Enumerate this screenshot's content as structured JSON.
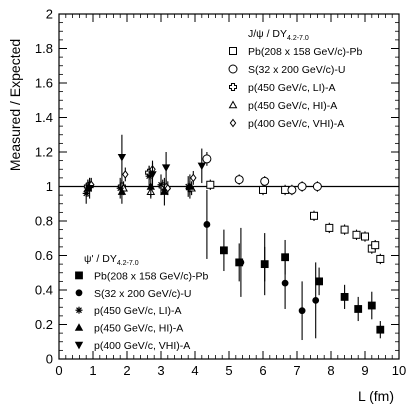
{
  "chart_data": {
    "type": "scatter",
    "xlabel": "L (fm)",
    "ylabel": "Measured / Expected",
    "xlim": [
      0,
      10
    ],
    "ylim": [
      0,
      2
    ],
    "x_ticks": [
      "0",
      "1",
      "2",
      "3",
      "4",
      "5",
      "6",
      "7",
      "8",
      "9",
      "10"
    ],
    "y_ticks": [
      "0",
      "0.2",
      "0.4",
      "0.6",
      "0.8",
      "1",
      "1.2",
      "1.4",
      "1.6",
      "1.8",
      "2"
    ],
    "reference_line": 1,
    "grid": false,
    "legends": [
      {
        "position": "top-right",
        "title_main": "J/ψ / DY",
        "title_sub": "4.2-7.0",
        "entries": [
          {
            "marker": "open-square",
            "label": "Pb(208 x 158 GeV/c)-Pb"
          },
          {
            "marker": "open-circle",
            "label": "S(32 x 200 GeV/c)-U"
          },
          {
            "marker": "open-cross",
            "label": "p(450 GeV/c, LI)-A"
          },
          {
            "marker": "open-triangle-up",
            "label": "p(450 GeV/c, HI)-A"
          },
          {
            "marker": "open-diamond",
            "label": "p(400 GeV/c, VHI)-A"
          }
        ]
      },
      {
        "position": "bottom-left",
        "title_main": "ψ' / DY",
        "title_sub": "4.2-7.0",
        "entries": [
          {
            "marker": "filled-square",
            "label": "Pb(208 x 158 GeV/c)-Pb"
          },
          {
            "marker": "filled-circle",
            "label": "S(32 x 200 GeV/c)-U"
          },
          {
            "marker": "asterisk",
            "label": "p(450 GeV/c, LI)-A"
          },
          {
            "marker": "filled-triangle-up",
            "label": "p(450 GeV/c, HI)-A"
          },
          {
            "marker": "filled-triangle-down",
            "label": "p(400 GeV/c, VHI)-A"
          }
        ]
      }
    ],
    "series": [
      {
        "marker": "open-square",
        "points": [
          {
            "x": 4.45,
            "y": 1.01,
            "err": 0.03
          },
          {
            "x": 6.0,
            "y": 0.98,
            "err": 0.03
          },
          {
            "x": 6.65,
            "y": 0.98,
            "err": 0.03
          },
          {
            "x": 7.5,
            "y": 0.83,
            "err": 0.03
          },
          {
            "x": 7.95,
            "y": 0.76,
            "err": 0.03
          },
          {
            "x": 8.4,
            "y": 0.75,
            "err": 0.03
          },
          {
            "x": 8.75,
            "y": 0.72,
            "err": 0.03
          },
          {
            "x": 9.0,
            "y": 0.71,
            "err": 0.03
          },
          {
            "x": 9.2,
            "y": 0.64,
            "err": 0.03
          },
          {
            "x": 9.3,
            "y": 0.66,
            "err": 0.03
          },
          {
            "x": 9.45,
            "y": 0.58,
            "err": 0.03
          }
        ]
      },
      {
        "marker": "open-circle",
        "points": [
          {
            "x": 4.35,
            "y": 1.16,
            "err": 0.04
          },
          {
            "x": 5.3,
            "y": 1.04,
            "err": 0.03
          },
          {
            "x": 6.05,
            "y": 1.03,
            "err": 0.03
          },
          {
            "x": 6.85,
            "y": 0.98,
            "err": 0.03
          },
          {
            "x": 7.15,
            "y": 1.0,
            "err": 0.03
          },
          {
            "x": 7.6,
            "y": 1.0,
            "err": 0.03
          }
        ]
      },
      {
        "marker": "open-cross",
        "points": [
          {
            "x": 0.85,
            "y": 1.0,
            "err": 0.04
          },
          {
            "x": 1.85,
            "y": 1.0,
            "err": 0.04
          },
          {
            "x": 2.65,
            "y": 1.08,
            "err": 0.04
          },
          {
            "x": 3.05,
            "y": 1.0,
            "err": 0.04
          },
          {
            "x": 3.85,
            "y": 0.99,
            "err": 0.04
          }
        ]
      },
      {
        "marker": "open-triangle-up",
        "points": [
          {
            "x": 0.9,
            "y": 1.01,
            "err": 0.04
          },
          {
            "x": 1.9,
            "y": 0.99,
            "err": 0.04
          },
          {
            "x": 2.7,
            "y": 0.97,
            "err": 0.04
          },
          {
            "x": 3.15,
            "y": 1.0,
            "err": 0.04
          },
          {
            "x": 3.9,
            "y": 0.99,
            "err": 0.04
          }
        ]
      },
      {
        "marker": "open-diamond",
        "points": [
          {
            "x": 0.95,
            "y": 1.01,
            "err": 0.04
          },
          {
            "x": 1.95,
            "y": 1.07,
            "err": 0.04
          },
          {
            "x": 2.75,
            "y": 1.1,
            "err": 0.04
          },
          {
            "x": 3.2,
            "y": 0.99,
            "err": 0.04
          },
          {
            "x": 3.95,
            "y": 1.05,
            "err": 0.04
          }
        ]
      },
      {
        "marker": "filled-square",
        "points": [
          {
            "x": 4.85,
            "y": 0.63,
            "err": 0.12
          },
          {
            "x": 5.3,
            "y": 0.56,
            "err": 0.11
          },
          {
            "x": 6.05,
            "y": 0.55,
            "err": 0.1
          },
          {
            "x": 6.65,
            "y": 0.59,
            "err": 0.1
          },
          {
            "x": 7.65,
            "y": 0.45,
            "err": 0.08
          },
          {
            "x": 8.4,
            "y": 0.36,
            "err": 0.07
          },
          {
            "x": 8.8,
            "y": 0.29,
            "err": 0.07
          },
          {
            "x": 9.2,
            "y": 0.31,
            "err": 0.08
          },
          {
            "x": 9.45,
            "y": 0.17,
            "err": 0.05
          }
        ]
      },
      {
        "marker": "filled-circle",
        "points": [
          {
            "x": 4.35,
            "y": 0.78,
            "err": 0.2
          },
          {
            "x": 5.35,
            "y": 0.56,
            "err": 0.2
          },
          {
            "x": 6.05,
            "y": 0.55,
            "err": 0.18
          },
          {
            "x": 6.65,
            "y": 0.44,
            "err": 0.15
          },
          {
            "x": 7.15,
            "y": 0.28,
            "err": 0.17
          },
          {
            "x": 7.55,
            "y": 0.34,
            "err": 0.22
          }
        ]
      },
      {
        "marker": "asterisk",
        "points": [
          {
            "x": 0.8,
            "y": 0.96,
            "err": 0.06
          },
          {
            "x": 1.8,
            "y": 0.99,
            "err": 0.06
          },
          {
            "x": 2.65,
            "y": 1.06,
            "err": 0.06
          },
          {
            "x": 3.0,
            "y": 1.01,
            "err": 0.06
          },
          {
            "x": 3.8,
            "y": 1.0,
            "err": 0.06
          }
        ]
      },
      {
        "marker": "filled-triangle-up",
        "points": [
          {
            "x": 0.85,
            "y": 0.99,
            "err": 0.05
          },
          {
            "x": 1.85,
            "y": 0.97,
            "err": 0.07
          },
          {
            "x": 2.7,
            "y": 1.0,
            "err": 0.06
          },
          {
            "x": 3.1,
            "y": 0.97,
            "err": 0.08
          },
          {
            "x": 3.85,
            "y": 1.0,
            "err": 0.07
          }
        ]
      },
      {
        "marker": "filled-triangle-down",
        "points": [
          {
            "x": 0.9,
            "y": 0.99,
            "err": 0.06
          },
          {
            "x": 1.85,
            "y": 1.17,
            "err": 0.13
          },
          {
            "x": 2.75,
            "y": 1.07,
            "err": 0.08
          },
          {
            "x": 3.15,
            "y": 1.11,
            "err": 0.09
          },
          {
            "x": 4.2,
            "y": 1.12,
            "err": 0.1
          }
        ]
      }
    ]
  }
}
